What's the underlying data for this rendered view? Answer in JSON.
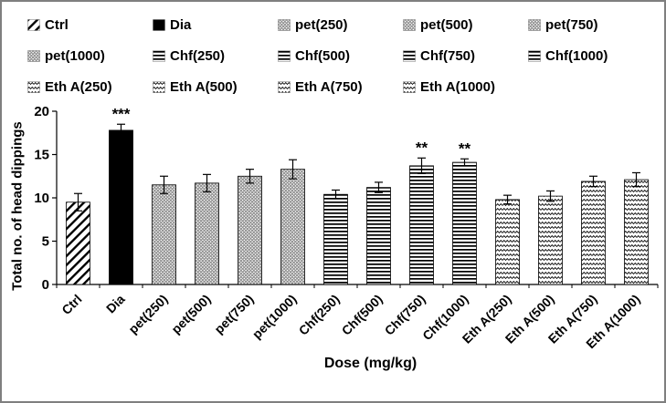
{
  "chart_data": {
    "type": "bar",
    "title": "",
    "xlabel": "Dose (mg/kg)",
    "ylabel": "Total no. of head dippings",
    "ylim": [
      0,
      20
    ],
    "yticks": [
      0,
      5,
      10,
      15,
      20
    ],
    "grid": false,
    "legend_position": "top",
    "categories": [
      "Ctrl",
      "Dia",
      "pet(250)",
      "pet(500)",
      "pet(750)",
      "pet(1000)",
      "Chf(250)",
      "Chf(500)",
      "Chf(750)",
      "Chf(1000)",
      "Eth A(250)",
      "Eth A(500)",
      "Eth A(750)",
      "Eth A(1000)"
    ],
    "values": [
      9.5,
      17.8,
      11.5,
      11.7,
      12.5,
      13.3,
      10.4,
      11.2,
      13.7,
      14.1,
      9.8,
      10.2,
      11.9,
      12.1
    ],
    "errors": [
      1.0,
      0.7,
      1.0,
      1.0,
      0.8,
      1.1,
      0.5,
      0.6,
      0.9,
      0.4,
      0.5,
      0.6,
      0.6,
      0.8
    ],
    "annotations": [
      "",
      "***",
      "",
      "",
      "",
      "",
      "",
      "",
      "**",
      "**",
      "",
      "",
      "",
      ""
    ],
    "patterns": [
      "diagonal",
      "solid",
      "dots",
      "dots",
      "dots",
      "dots",
      "hlines",
      "hlines",
      "hlines",
      "hlines",
      "zigzag",
      "zigzag",
      "zigzag",
      "zigzag"
    ],
    "colors": {
      "bar_outline": "#000000",
      "solid_fill": "#000000",
      "dots_gray": "#8f8f8f",
      "text": "#000000",
      "background": "#ffffff"
    }
  }
}
